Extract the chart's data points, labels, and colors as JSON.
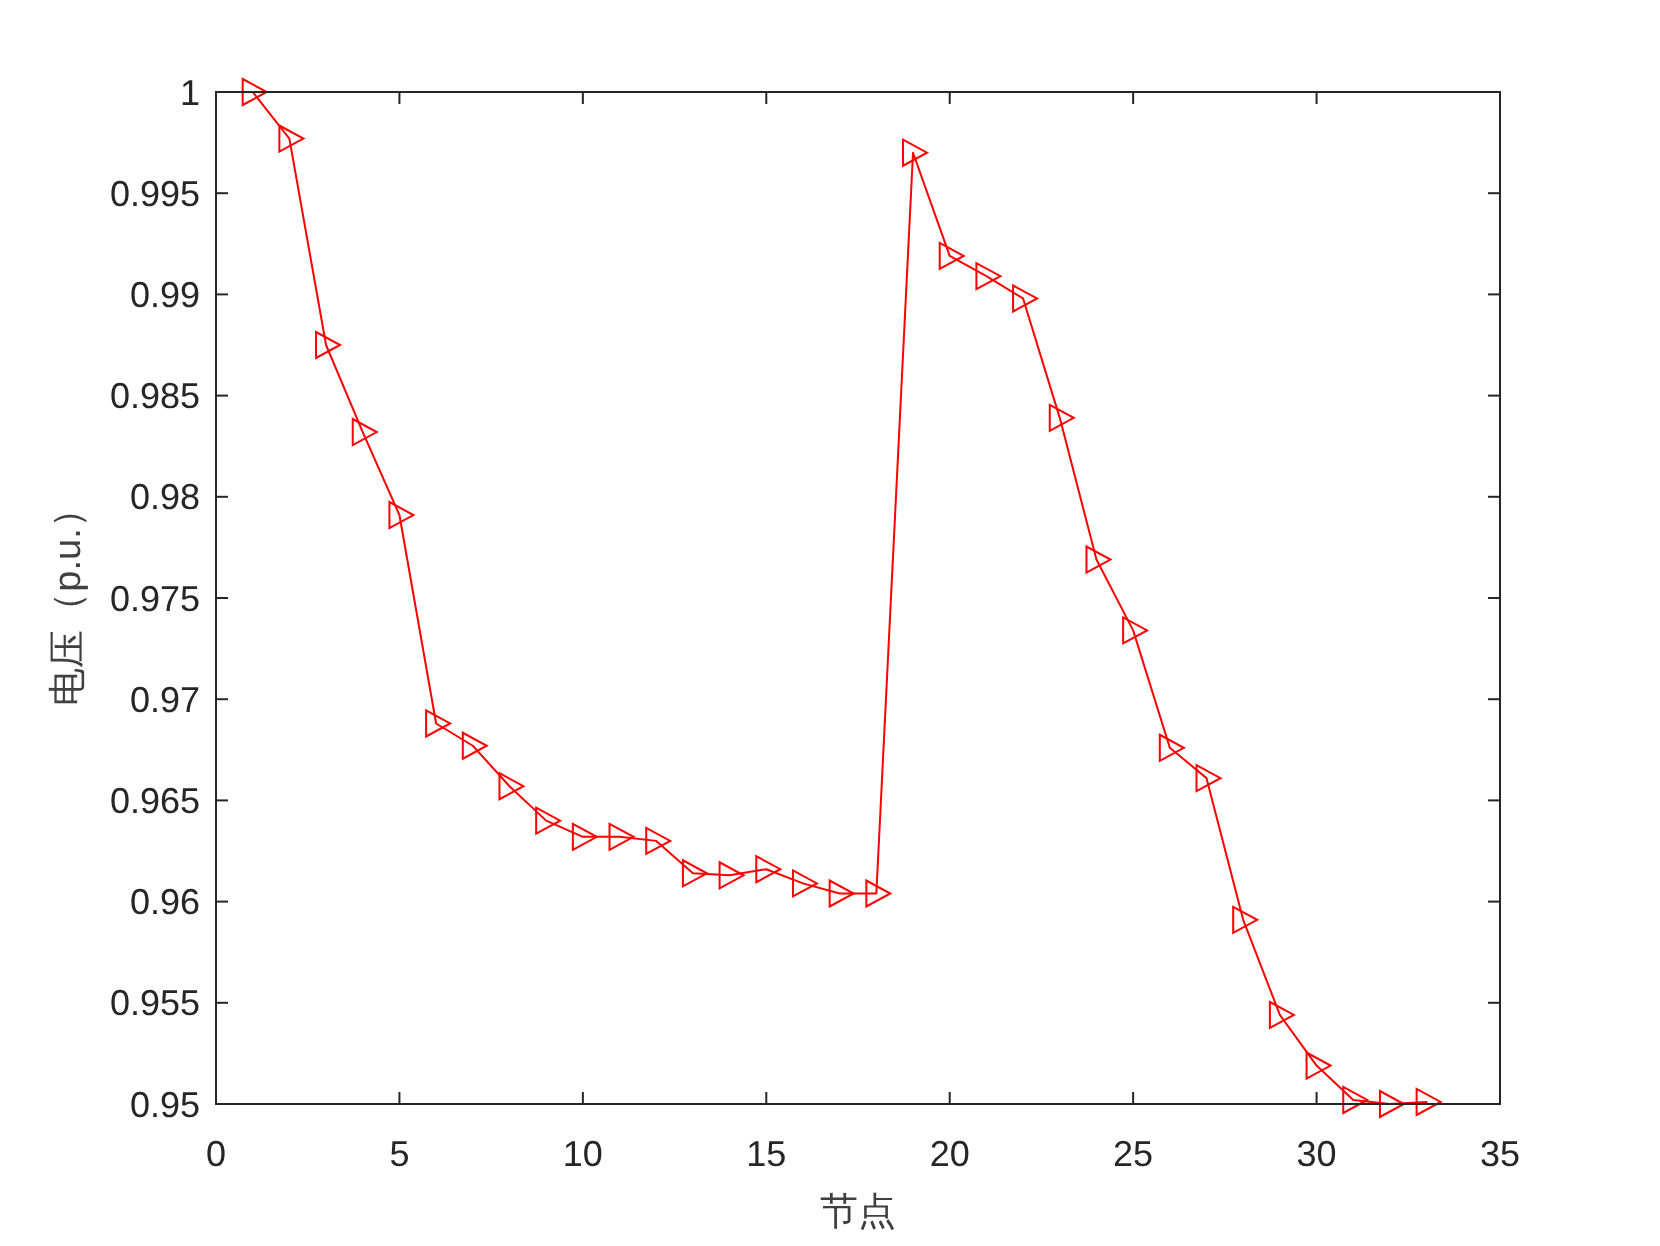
{
  "chart_data": {
    "type": "line",
    "xlabel": "节点",
    "ylabel": "电压（p.u.）",
    "x": [
      1,
      2,
      3,
      4,
      5,
      6,
      7,
      8,
      9,
      10,
      11,
      12,
      13,
      14,
      15,
      16,
      17,
      18,
      19,
      20,
      21,
      22,
      23,
      24,
      25,
      26,
      27,
      28,
      29,
      30,
      31,
      32,
      33
    ],
    "series": [
      {
        "color": "#ff0000",
        "values": [
          1.0,
          0.9977,
          0.9875,
          0.9832,
          0.9791,
          0.9688,
          0.9677,
          0.9657,
          0.964,
          0.9632,
          0.9632,
          0.963,
          0.9614,
          0.9613,
          0.9616,
          0.9609,
          0.9604,
          0.9604,
          0.997,
          0.9919,
          0.9909,
          0.9898,
          0.9839,
          0.9769,
          0.9734,
          0.9676,
          0.9661,
          0.9591,
          0.9544,
          0.9519,
          0.9502,
          0.95,
          0.9501
        ]
      }
    ],
    "xlim": [
      0,
      35
    ],
    "ylim": [
      0.95,
      1
    ],
    "xticks": [
      0,
      5,
      10,
      15,
      20,
      25,
      30,
      35
    ],
    "yticks": [
      0.95,
      0.955,
      0.96,
      0.965,
      0.97,
      0.975,
      0.98,
      0.985,
      0.99,
      0.995,
      1
    ],
    "marker": "triangle",
    "line_style": "solid"
  }
}
